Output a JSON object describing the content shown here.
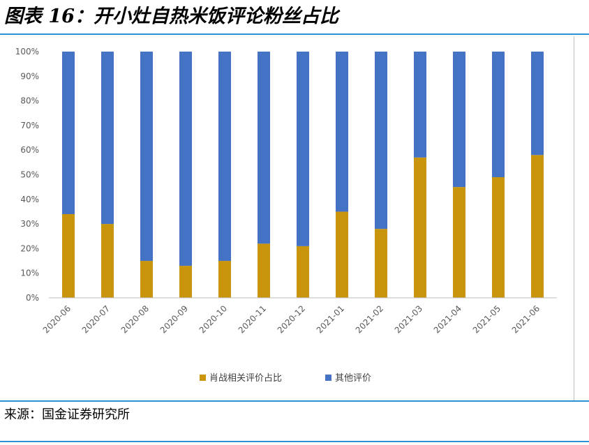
{
  "figure": {
    "title": "图表 16：开小灶自热米饭评论粉丝占比",
    "source": "来源：国金证券研究所"
  },
  "colors": {
    "series_a": "#c9950c",
    "series_b": "#4472c4",
    "rule": "#2e8fd6",
    "axis": "#bfbfbf"
  },
  "chart_data": {
    "type": "bar",
    "stacked": true,
    "categories": [
      "2020-06",
      "2020-07",
      "2020-08",
      "2020-09",
      "2020-10",
      "2020-11",
      "2020-12",
      "2021-01",
      "2021-02",
      "2021-03",
      "2021-04",
      "2021-05",
      "2021-06"
    ],
    "series": [
      {
        "name": "肖战相关评价占比",
        "values": [
          34,
          30,
          15,
          13,
          15,
          22,
          21,
          35,
          28,
          57,
          45,
          49,
          58
        ]
      },
      {
        "name": "其他评价",
        "values": [
          66,
          70,
          85,
          87,
          85,
          78,
          79,
          65,
          72,
          43,
          55,
          51,
          42
        ]
      }
    ],
    "yticks": [
      "0%",
      "10%",
      "20%",
      "30%",
      "40%",
      "50%",
      "60%",
      "70%",
      "80%",
      "90%",
      "100%"
    ],
    "ylim": [
      0,
      100
    ],
    "grid": false,
    "legend_position": "bottom"
  }
}
